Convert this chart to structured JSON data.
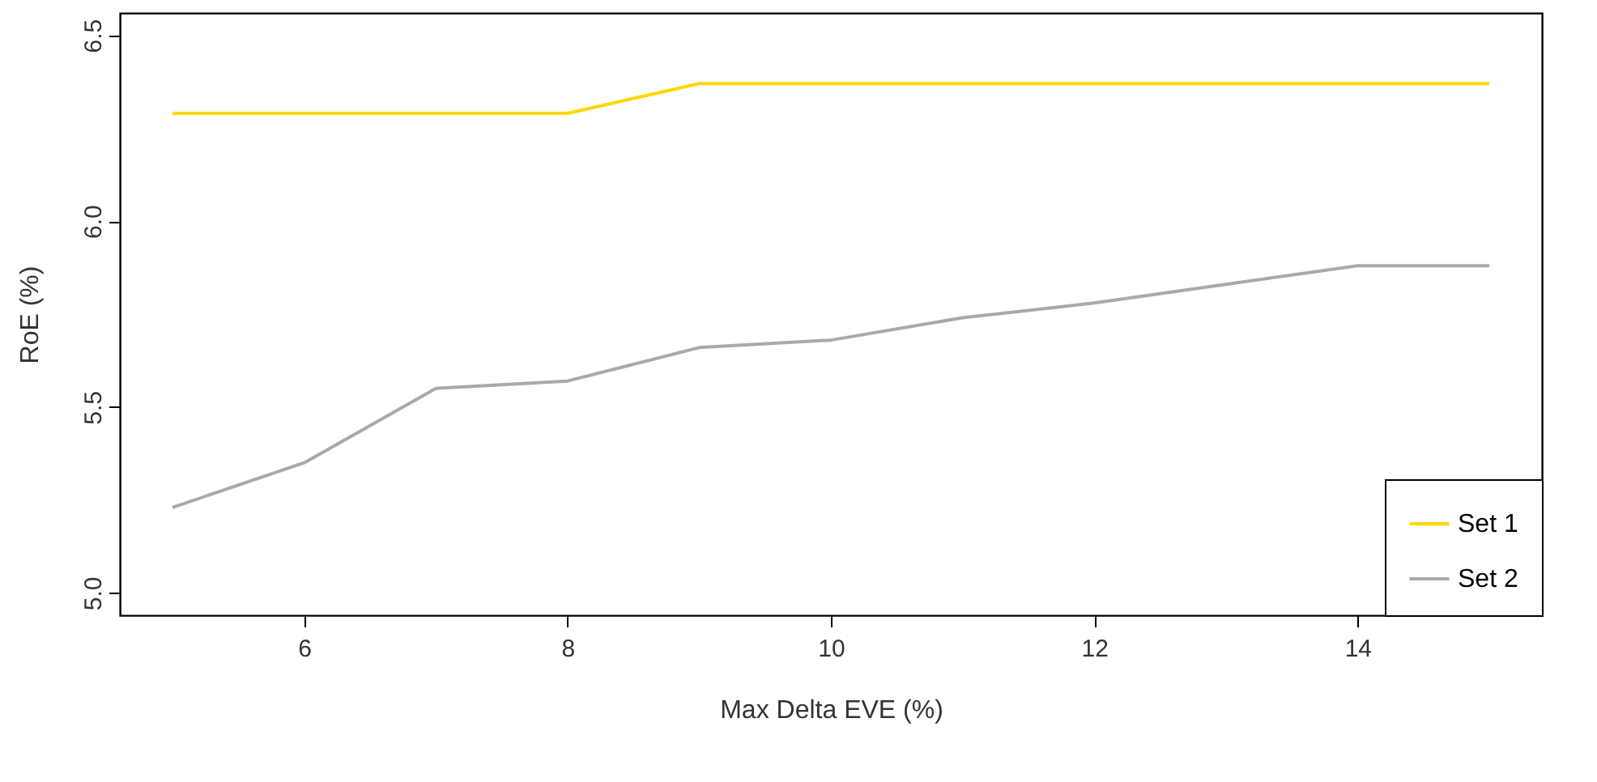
{
  "chart_data": {
    "type": "line",
    "xlabel": "Max Delta EVE (%)",
    "ylabel": "RoE (%)",
    "x": [
      5,
      6,
      7,
      8,
      9,
      10,
      11,
      12,
      13,
      14,
      15
    ],
    "series": [
      {
        "name": "Set 1",
        "color": "#ffd700",
        "values": [
          6.29,
          6.29,
          6.29,
          6.29,
          6.37,
          6.37,
          6.37,
          6.37,
          6.37,
          6.37,
          6.37
        ]
      },
      {
        "name": "Set 2",
        "color": "#a9a9a9",
        "values": [
          5.23,
          5.35,
          5.55,
          5.57,
          5.66,
          5.68,
          5.74,
          5.78,
          5.83,
          5.88,
          5.88
        ]
      }
    ],
    "xlim": [
      4.6,
      15.4
    ],
    "xticks": [
      6,
      8,
      10,
      12,
      14
    ],
    "ylim": [
      4.94,
      6.56
    ],
    "yticks": [
      {
        "value": 5,
        "label": "5.0"
      },
      {
        "value": 5.5,
        "label": "5.5"
      },
      {
        "value": 6,
        "label": "6.0"
      },
      {
        "value": 6.5,
        "label": "6.5"
      }
    ],
    "grid": false,
    "legend": "bottom right",
    "line_style": "solid",
    "marker": "none"
  }
}
